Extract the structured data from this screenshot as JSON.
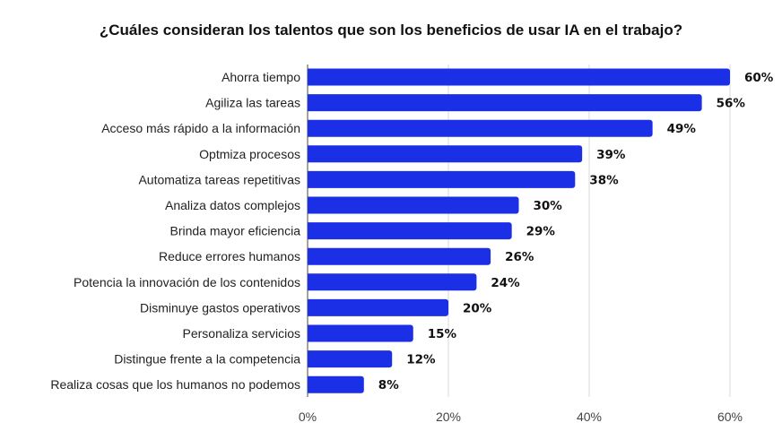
{
  "chart_data": {
    "type": "bar",
    "orientation": "horizontal",
    "title": "¿Cuáles consideran los talentos que son los beneficios de usar IA en el trabajo?",
    "categories": [
      "Ahorra tiempo",
      "Agiliza las tareas",
      "Acceso más rápido a la información",
      "Optmiza procesos",
      "Automatiza tareas repetitivas",
      "Analiza datos complejos",
      "Brinda mayor eficiencia",
      "Reduce errores humanos",
      "Potencia la innovación de los contenidos",
      "Disminuye gastos operativos",
      "Personaliza servicios",
      "Distingue frente a la competencia",
      "Realiza cosas que los humanos no podemos"
    ],
    "values": [
      60,
      56,
      49,
      39,
      38,
      30,
      29,
      26,
      24,
      20,
      15,
      12,
      8
    ],
    "value_labels": [
      "60%",
      "56%",
      "49%",
      "39%",
      "38%",
      "30%",
      "29%",
      "26%",
      "24%",
      "20%",
      "15%",
      "12%",
      "8%"
    ],
    "xlim": [
      0,
      60
    ],
    "xticks": [
      0,
      20,
      40,
      60
    ],
    "xtick_labels": [
      "0%",
      "20%",
      "40%",
      "60%"
    ],
    "xlabel": "",
    "ylabel": "",
    "grid": "vertical",
    "legend": "none",
    "bar_color": "#1a2fe6"
  }
}
